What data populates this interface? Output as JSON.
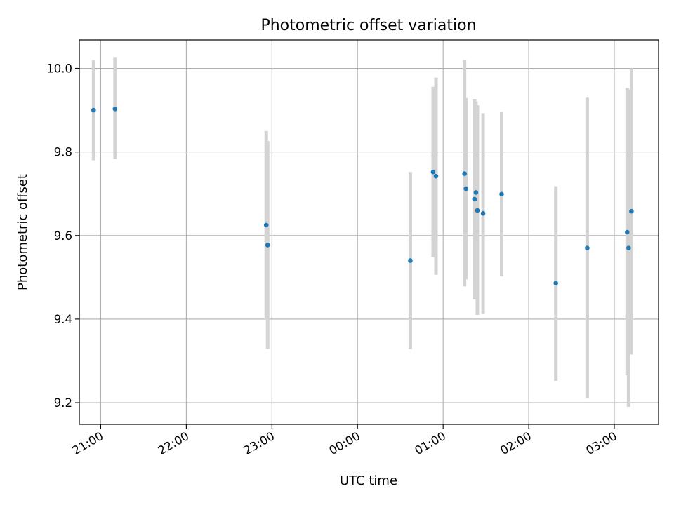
{
  "chart_data": {
    "type": "scatter",
    "title": "Photometric offset variation",
    "xlabel": "UTC time",
    "ylabel": "Photometric offset",
    "xlim": [
      "20:45",
      "03:31"
    ],
    "ylim": [
      9.148,
      10.068
    ],
    "x_ticks": [
      "21:00",
      "22:00",
      "23:00",
      "00:00",
      "01:00",
      "02:00",
      "03:00"
    ],
    "y_ticks": [
      "9.2",
      "9.4",
      "9.6",
      "9.8",
      "10.0"
    ],
    "grid": true,
    "colors": {
      "point": "#1f77b4",
      "errorbar": "#d3d3d3",
      "grid": "#b0b0b0"
    },
    "points": [
      {
        "x": "20:55",
        "y": 9.9,
        "ylow": 9.78,
        "yhigh": 10.02
      },
      {
        "x": "21:10",
        "y": 9.903,
        "ylow": 9.783,
        "yhigh": 10.027
      },
      {
        "x": "22:56",
        "y": 9.625,
        "ylow": 9.4,
        "yhigh": 9.85
      },
      {
        "x": "22:57",
        "y": 9.577,
        "ylow": 9.328,
        "yhigh": 9.826
      },
      {
        "x": "00:37",
        "y": 9.54,
        "ylow": 9.328,
        "yhigh": 9.752
      },
      {
        "x": "00:53",
        "y": 9.752,
        "ylow": 9.548,
        "yhigh": 9.956
      },
      {
        "x": "00:55",
        "y": 9.742,
        "ylow": 9.506,
        "yhigh": 9.978
      },
      {
        "x": "01:15",
        "y": 9.748,
        "ylow": 9.478,
        "yhigh": 10.02
      },
      {
        "x": "01:16",
        "y": 9.712,
        "ylow": 9.495,
        "yhigh": 9.929
      },
      {
        "x": "01:22",
        "y": 9.687,
        "ylow": 9.447,
        "yhigh": 9.927
      },
      {
        "x": "01:23",
        "y": 9.703,
        "ylow": 9.49,
        "yhigh": 9.921
      },
      {
        "x": "01:24",
        "y": 9.66,
        "ylow": 9.41,
        "yhigh": 9.912
      },
      {
        "x": "01:28",
        "y": 9.653,
        "ylow": 9.412,
        "yhigh": 9.893
      },
      {
        "x": "01:41",
        "y": 9.699,
        "ylow": 9.502,
        "yhigh": 9.896
      },
      {
        "x": "02:19",
        "y": 9.486,
        "ylow": 9.252,
        "yhigh": 9.718
      },
      {
        "x": "02:41",
        "y": 9.57,
        "ylow": 9.21,
        "yhigh": 9.93
      },
      {
        "x": "03:09",
        "y": 9.608,
        "ylow": 9.265,
        "yhigh": 9.953
      },
      {
        "x": "03:10",
        "y": 9.57,
        "ylow": 9.19,
        "yhigh": 9.95
      },
      {
        "x": "03:12",
        "y": 9.658,
        "ylow": 9.315,
        "yhigh": 10.0
      }
    ]
  }
}
